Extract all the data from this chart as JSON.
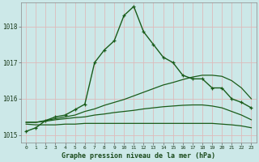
{
  "bg_color": "#cce8e8",
  "grid_color": "#aacccc",
  "line_color": "#1a5c1a",
  "title": "Graphe pression niveau de la mer (hPa)",
  "xlim": [
    -0.5,
    23.5
  ],
  "ylim": [
    1014.8,
    1018.65
  ],
  "yticks": [
    1015,
    1016,
    1017,
    1018
  ],
  "xtick_labels": [
    "0",
    "1",
    "2",
    "3",
    "4",
    "5",
    "6",
    "7",
    "8",
    "9",
    "10",
    "11",
    "12",
    "13",
    "14",
    "15",
    "16",
    "17",
    "18",
    "19",
    "20",
    "21",
    "22",
    "23"
  ],
  "series1_x": [
    0,
    1,
    2,
    3,
    4,
    5,
    6,
    7,
    8,
    9,
    10,
    11,
    12,
    13,
    14,
    15,
    16,
    17,
    18,
    19,
    20,
    21,
    22,
    23
  ],
  "series1_y": [
    1015.1,
    1015.2,
    1015.4,
    1015.5,
    1015.55,
    1015.7,
    1015.85,
    1017.0,
    1017.35,
    1017.6,
    1018.3,
    1018.55,
    1017.85,
    1017.5,
    1017.15,
    1017.0,
    1016.65,
    1016.55,
    1016.55,
    1016.3,
    1016.3,
    1016.0,
    1015.9,
    1015.75
  ],
  "series2_x": [
    0,
    1,
    2,
    3,
    4,
    5,
    6,
    7,
    8,
    9,
    10,
    11,
    12,
    13,
    14,
    15,
    16,
    17,
    18,
    19,
    20,
    21,
    22,
    23
  ],
  "series2_y": [
    1015.35,
    1015.35,
    1015.4,
    1015.45,
    1015.5,
    1015.55,
    1015.65,
    1015.72,
    1015.82,
    1015.9,
    1015.98,
    1016.08,
    1016.18,
    1016.28,
    1016.38,
    1016.45,
    1016.53,
    1016.6,
    1016.65,
    1016.65,
    1016.62,
    1016.5,
    1016.3,
    1016.0
  ],
  "series3_x": [
    0,
    1,
    2,
    3,
    4,
    5,
    6,
    7,
    8,
    9,
    10,
    11,
    12,
    13,
    14,
    15,
    16,
    17,
    18,
    19,
    20,
    21,
    22,
    23
  ],
  "series3_y": [
    1015.35,
    1015.35,
    1015.38,
    1015.42,
    1015.45,
    1015.48,
    1015.5,
    1015.55,
    1015.58,
    1015.62,
    1015.65,
    1015.68,
    1015.72,
    1015.75,
    1015.78,
    1015.8,
    1015.82,
    1015.83,
    1015.83,
    1015.8,
    1015.75,
    1015.65,
    1015.55,
    1015.42
  ],
  "series4_x": [
    0,
    1,
    2,
    3,
    4,
    5,
    6,
    7,
    8,
    9,
    10,
    11,
    12,
    13,
    14,
    15,
    16,
    17,
    18,
    19,
    20,
    21,
    22,
    23
  ],
  "series4_y": [
    1015.3,
    1015.28,
    1015.28,
    1015.28,
    1015.3,
    1015.3,
    1015.32,
    1015.32,
    1015.32,
    1015.32,
    1015.32,
    1015.32,
    1015.32,
    1015.32,
    1015.32,
    1015.32,
    1015.32,
    1015.32,
    1015.32,
    1015.32,
    1015.3,
    1015.28,
    1015.25,
    1015.2
  ]
}
